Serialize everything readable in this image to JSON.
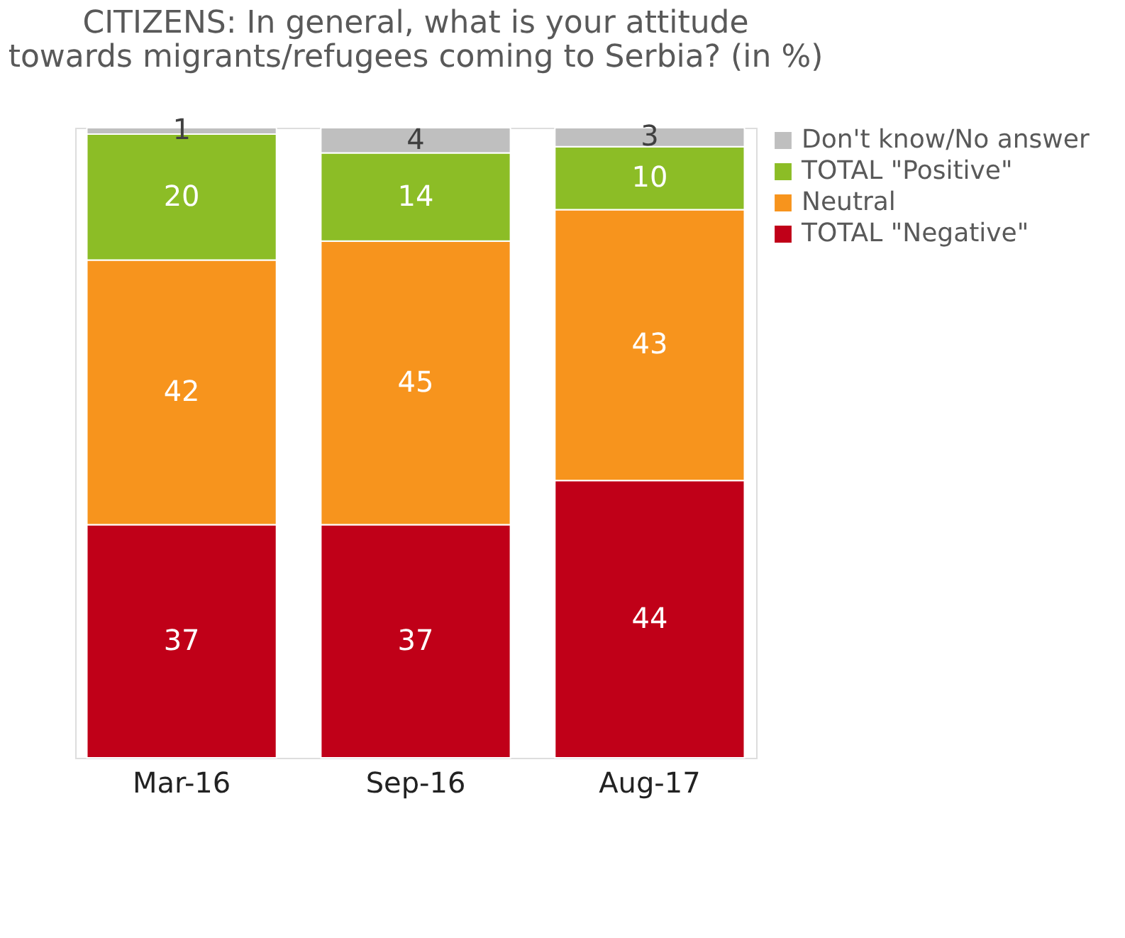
{
  "chart_data": {
    "type": "bar",
    "stacked": true,
    "title": "CITIZENS: In general, what is your attitude towards migrants/refugees coming to Serbia? (in %)",
    "categories": [
      "Mar-16",
      "Sep-16",
      "Aug-17"
    ],
    "series": [
      {
        "name": "TOTAL \"Negative\"",
        "color": "#c00018",
        "values": [
          37,
          37,
          44
        ]
      },
      {
        "name": "Neutral",
        "color": "#f7941d",
        "values": [
          42,
          45,
          43
        ]
      },
      {
        "name": "TOTAL \"Positive\"",
        "color": "#8cbd26",
        "values": [
          20,
          14,
          10
        ]
      },
      {
        "name": "Don't know/No answer",
        "color": "#bfbfbf",
        "values": [
          1,
          4,
          3
        ]
      }
    ],
    "data_labels": true,
    "legend": "right",
    "grid": false
  }
}
